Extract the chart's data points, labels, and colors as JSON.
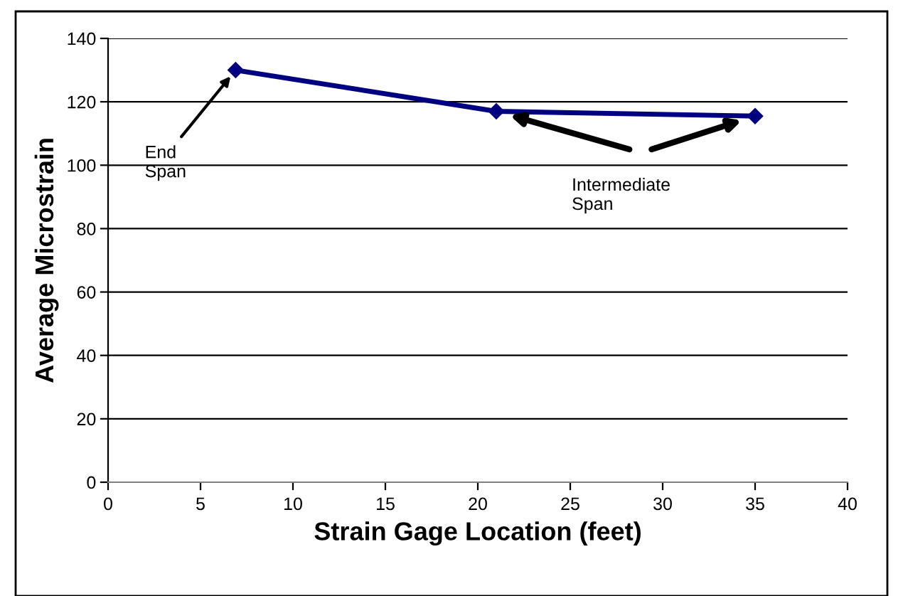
{
  "chart_data": {
    "type": "line",
    "xlabel": "Strain Gage Location (feet)",
    "ylabel": "Average Microstrain",
    "x": [
      6.9,
      21,
      35
    ],
    "series": [
      {
        "color": "#000080",
        "values": [
          130,
          117,
          115.5
        ]
      }
    ],
    "xlim": [
      0,
      40
    ],
    "xticks": [
      0,
      5,
      10,
      15,
      20,
      25,
      30,
      35,
      40
    ],
    "ylim": [
      0,
      140
    ],
    "yticks": [
      0,
      20,
      40,
      60,
      80,
      100,
      120,
      140
    ],
    "grid": "y",
    "marker": "diamond",
    "line_style": "solid",
    "annotations": [
      {
        "text": "End\nSpan",
        "x": 6.9,
        "y": 130
      },
      "Intermediate\nSpan"
    ]
  }
}
